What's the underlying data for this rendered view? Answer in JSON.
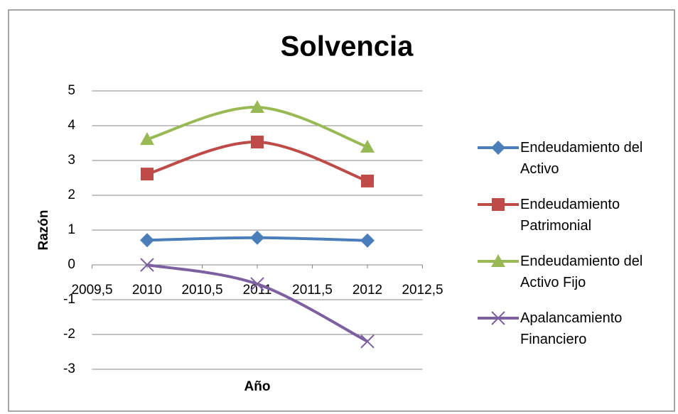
{
  "chart_data": {
    "type": "line",
    "title": "Solvencia",
    "x_label": "Año",
    "y_label": "Razón",
    "x": [
      2010,
      2011,
      2012
    ],
    "series": [
      {
        "name": "Endeudamiento del Activo",
        "color": "#4a7ebb",
        "marker": "diamond",
        "values": [
          0.71,
          0.78,
          0.7
        ]
      },
      {
        "name": "Endeudamiento Patrimonial",
        "color": "#be4b48",
        "marker": "square",
        "values": [
          2.61,
          3.53,
          2.41
        ]
      },
      {
        "name": "Endeudamiento del Activo Fijo",
        "color": "#98b954",
        "marker": "triangle",
        "values": [
          3.61,
          4.53,
          3.39
        ]
      },
      {
        "name": "Apalancamiento Financiero",
        "color": "#7d60a0",
        "marker": "x",
        "values": [
          0,
          -0.55,
          -2.2
        ]
      }
    ],
    "xlim": [
      2009.5,
      2012.5
    ],
    "xticks": [
      {
        "value": 2009.5,
        "label": "2009,5"
      },
      2010,
      {
        "value": 2010.5,
        "label": "2010,5"
      },
      2011,
      {
        "value": 2011.5,
        "label": "2011,5"
      },
      2012,
      {
        "value": 2012.5,
        "label": "2012,5"
      }
    ],
    "ylim": [
      -3,
      5
    ],
    "yticks": [
      -3,
      -2,
      -1,
      0,
      1,
      2,
      3,
      4,
      5
    ],
    "grid": true,
    "smooth": true,
    "legend": "right"
  }
}
